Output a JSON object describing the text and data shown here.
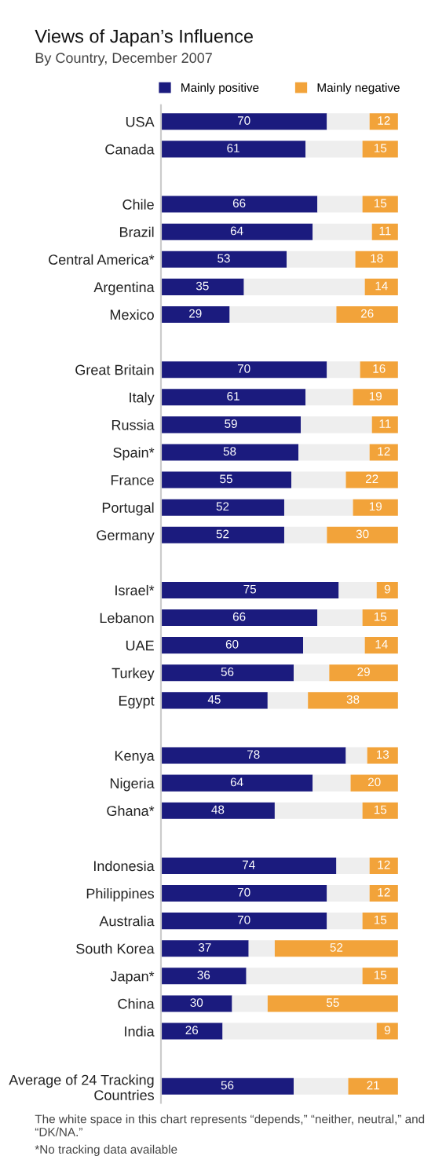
{
  "chart_data": {
    "type": "bar",
    "orientation": "horizontal",
    "stacked": true,
    "title": "Views of Japan’s Influence",
    "subtitle": "By Country, December 2007",
    "categories": [
      "USA",
      "Canada",
      null,
      "Chile",
      "Brazil",
      "Central America*",
      "Argentina",
      "Mexico",
      null,
      "Great Britain",
      "Italy",
      "Russia",
      "Spain*",
      "France",
      "Portugal",
      "Germany",
      null,
      "Israel*",
      "Lebanon",
      "UAE",
      "Turkey",
      "Egypt",
      null,
      "Kenya",
      "Nigeria",
      "Ghana*",
      null,
      "Indonesia",
      "Philippines",
      "Australia",
      "South Korea",
      "Japan*",
      "China",
      "India",
      null,
      "Average of 24 Tracking\nCountries"
    ],
    "series": [
      {
        "name": "Mainly positive",
        "color": "#1b1b7e",
        "values": [
          70,
          61,
          null,
          66,
          64,
          53,
          35,
          29,
          null,
          70,
          61,
          59,
          58,
          55,
          52,
          52,
          null,
          75,
          66,
          60,
          56,
          45,
          null,
          78,
          64,
          48,
          null,
          74,
          70,
          70,
          37,
          36,
          30,
          26,
          null,
          56
        ],
        "value_labels": [
          "70",
          "61",
          null,
          "66",
          "64",
          "53",
          "35",
          "29",
          null,
          "70",
          "61",
          "59",
          "58",
          "55",
          "52",
          "52",
          null,
          "75",
          "66",
          "60",
          "56",
          "45",
          null,
          "78",
          "64",
          "48",
          null,
          "74",
          "70",
          "70",
          "37",
          "36",
          "30",
          "26",
          null,
          "56"
        ]
      },
      {
        "color": "#eeeeee",
        "values": [
          18,
          24,
          null,
          19,
          25,
          29,
          51,
          45,
          null,
          14,
          20,
          30,
          30,
          23,
          29,
          18,
          null,
          16,
          19,
          26,
          15,
          17,
          null,
          9,
          16,
          37,
          null,
          14,
          18,
          15,
          11,
          49,
          15,
          65,
          null,
          23
        ]
      },
      {
        "name": "Mainly negative",
        "color": "#f2a33a",
        "values": [
          12,
          15,
          null,
          15,
          11,
          18,
          14,
          26,
          null,
          16,
          19,
          11,
          12,
          22,
          19,
          30,
          null,
          9,
          15,
          14,
          29,
          38,
          null,
          13,
          20,
          15,
          null,
          12,
          12,
          15,
          52,
          15,
          55,
          9,
          null,
          21
        ],
        "value_labels": [
          "12",
          "15",
          null,
          "15",
          "11",
          "18",
          "14",
          "26",
          null,
          "16",
          "19",
          "11",
          "12",
          "22",
          "19",
          "30",
          null,
          "9",
          "15",
          "14",
          "29",
          "38",
          null,
          "13",
          "20",
          "15",
          null,
          "12",
          "12",
          "15",
          "52",
          "15",
          "55",
          "9",
          null,
          "21"
        ]
      }
    ],
    "xlim": [
      0,
      100
    ],
    "tick_labels": "y",
    "legend": "top",
    "grid": false,
    "annotations": [
      "The white space in this chart represents “depends,” “neither, neutral,” and “DK/NA.”",
      "*No tracking data available"
    ]
  }
}
